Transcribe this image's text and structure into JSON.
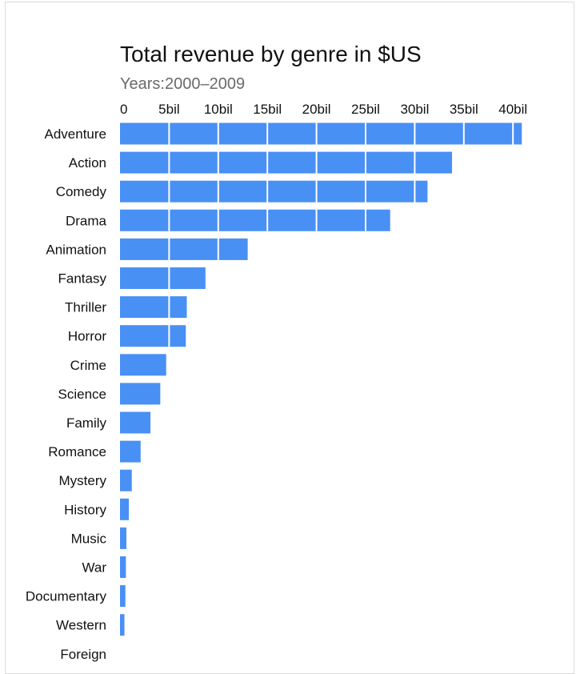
{
  "chart_data": {
    "type": "bar",
    "orientation": "horizontal",
    "title": "Total revenue by genre in $US",
    "subtitle": "Years:2000–2009",
    "xlabel": "",
    "ylabel": "",
    "x_axis_position": "top",
    "xlim": [
      0,
      41
    ],
    "x_ticks": [
      0,
      5,
      10,
      15,
      20,
      25,
      30,
      35,
      40
    ],
    "x_tick_labels": [
      "0",
      "5bil",
      "10bil",
      "15bil",
      "20bil",
      "25bil",
      "30bil",
      "35bil",
      "40bil"
    ],
    "grid": "vertical white lines over bars",
    "legend": "none",
    "bar_color": "#4990f5",
    "categories": [
      "Adventure",
      "Action",
      "Comedy",
      "Drama",
      "Animation",
      "Fantasy",
      "Thriller",
      "Horror",
      "Crime",
      "Science",
      "Family",
      "Romance",
      "Mystery",
      "History",
      "Music",
      "War",
      "Documentary",
      "Western",
      "Foreign"
    ],
    "values": [
      40.9,
      33.8,
      31.3,
      27.5,
      13.0,
      8.7,
      6.8,
      6.7,
      4.7,
      4.1,
      3.1,
      2.1,
      1.2,
      0.9,
      0.65,
      0.6,
      0.55,
      0.45,
      0.0
    ]
  }
}
